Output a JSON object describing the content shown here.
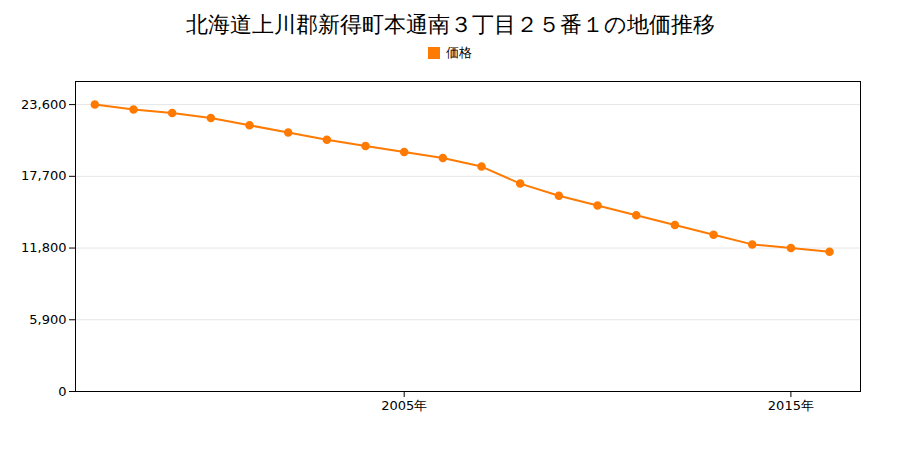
{
  "chart_data": {
    "type": "line",
    "title": "北海道上川郡新得町本通南３丁目２５番１の地価推移",
    "x": [
      1997,
      1998,
      1999,
      2000,
      2001,
      2002,
      2003,
      2004,
      2005,
      2006,
      2007,
      2008,
      2009,
      2010,
      2011,
      2012,
      2013,
      2014,
      2015,
      2016
    ],
    "series": [
      {
        "name": "価格",
        "color": "#FF7A00",
        "marker": "circle",
        "values": [
          23600,
          23200,
          22900,
          22500,
          21900,
          21300,
          20700,
          20200,
          19700,
          19200,
          18500,
          17100,
          16100,
          15300,
          14500,
          13700,
          12900,
          12100,
          11800,
          11500
        ]
      }
    ],
    "xlim": [
      1996.5,
      2016.8
    ],
    "xticks": [
      {
        "value": 2005,
        "label": "2005年"
      },
      {
        "value": 2015,
        "label": "2015年"
      }
    ],
    "ylim": [
      0,
      25500
    ],
    "yticks": [
      0,
      {
        "value": 5900,
        "label": "5,900"
      },
      {
        "value": 11800,
        "label": "11,800"
      },
      {
        "value": 17700,
        "label": "17,700"
      },
      {
        "value": 23600,
        "label": "23,600"
      }
    ],
    "grid": true,
    "legend": "top"
  }
}
